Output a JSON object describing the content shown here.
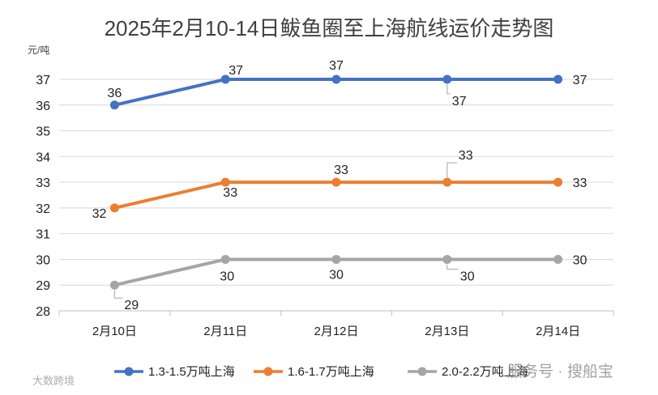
{
  "chart_data": {
    "type": "line",
    "title": "2025年2月10-14日鲅鱼圈至上海航线运价走势图",
    "ylabel": "元/吨",
    "xlabel": "",
    "ylim": [
      28,
      37
    ],
    "yticks": [
      "28",
      "29",
      "30",
      "31",
      "32",
      "33",
      "34",
      "35",
      "36",
      "37"
    ],
    "categories": [
      "2月10日",
      "2月11日",
      "2月12日",
      "2月13日",
      "2月14日"
    ],
    "grid": true,
    "legend_position": "bottom",
    "series": [
      {
        "name": "1.3-1.5万吨上海",
        "color": "#4472C4",
        "values": [
          36,
          37,
          37,
          37,
          37
        ]
      },
      {
        "name": "1.6-1.7万吨上海",
        "color": "#ED7D31",
        "values": [
          32,
          33,
          33,
          33,
          33
        ]
      },
      {
        "name": "2.0-2.2万吨上海",
        "color": "#A5A5A5",
        "values": [
          29,
          30,
          30,
          30,
          30
        ]
      }
    ]
  },
  "watermarks": {
    "right": "服务号 · 搜船宝",
    "left": "大数跨境"
  }
}
